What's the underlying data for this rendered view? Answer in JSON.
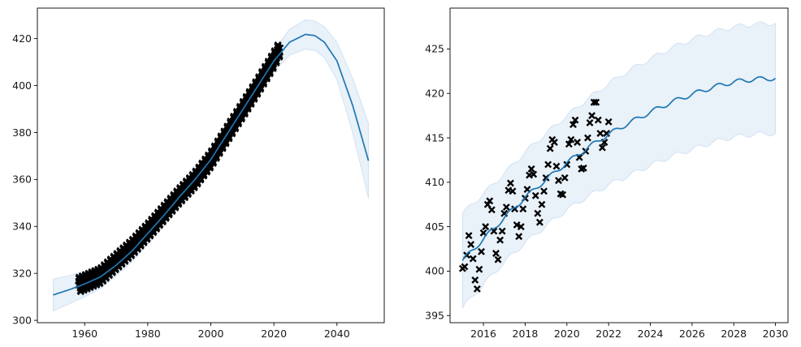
{
  "chart_data": [
    {
      "type": "line",
      "panel": "left",
      "title": "",
      "xlabel": "",
      "ylabel": "",
      "xlim": [
        1945,
        2055
      ],
      "ylim": [
        299,
        433
      ],
      "xticks": [
        1960,
        1980,
        2000,
        2020,
        2040
      ],
      "yticks": [
        300,
        320,
        340,
        360,
        380,
        400,
        420
      ],
      "grid": false,
      "legend": "none",
      "colors": {
        "mean": "#1f77b4",
        "band": "#cfe1f2",
        "markers": "#000000"
      },
      "observations": {
        "marker": "x",
        "x_range": [
          1958,
          2022
        ],
        "seasonal_amplitude": 3.2,
        "trend_points": [
          [
            1958,
            315
          ],
          [
            1965,
            319
          ],
          [
            1970,
            325
          ],
          [
            1975,
            331
          ],
          [
            1980,
            338
          ],
          [
            1985,
            345.5
          ],
          [
            1990,
            353
          ],
          [
            1995,
            360
          ],
          [
            2000,
            368.5
          ],
          [
            2005,
            379
          ],
          [
            2010,
            389.5
          ],
          [
            2015,
            400
          ],
          [
            2020,
            411
          ],
          [
            2022,
            416
          ]
        ]
      },
      "series": [
        {
          "role": "mean",
          "points": [
            [
              1950,
              310.8
            ],
            [
              1955,
              313
            ],
            [
              1960,
              315.5
            ],
            [
              1965,
              318.5
            ],
            [
              1970,
              323.5
            ],
            [
              1975,
              329.5
            ],
            [
              1980,
              337
            ],
            [
              1985,
              344.5
            ],
            [
              1990,
              352.5
            ],
            [
              1995,
              360
            ],
            [
              2000,
              368.5
            ],
            [
              2005,
              379
            ],
            [
              2010,
              389.5
            ],
            [
              2015,
              400
            ],
            [
              2020,
              410.5
            ],
            [
              2025,
              418.5
            ],
            [
              2030,
              421.8
            ],
            [
              2033,
              421.3
            ],
            [
              2036,
              418.5
            ],
            [
              2040,
              410.5
            ],
            [
              2045,
              391.5
            ],
            [
              2050,
              368
            ]
          ]
        },
        {
          "role": "band",
          "upper": [
            [
              1950,
              317.5
            ],
            [
              1955,
              319
            ],
            [
              1960,
              321
            ],
            [
              1965,
              323.5
            ],
            [
              1970,
              328
            ],
            [
              1975,
              334
            ],
            [
              1980,
              341.5
            ],
            [
              1985,
              349
            ],
            [
              1990,
              357
            ],
            [
              1995,
              364.5
            ],
            [
              2000,
              373
            ],
            [
              2005,
              383.5
            ],
            [
              2010,
              394
            ],
            [
              2015,
              404.5
            ],
            [
              2020,
              415
            ],
            [
              2025,
              424
            ],
            [
              2030,
              428
            ],
            [
              2033,
              427.5
            ],
            [
              2036,
              425
            ],
            [
              2040,
              418.5
            ],
            [
              2045,
              403
            ],
            [
              2050,
              384
            ]
          ],
          "lower": [
            [
              1950,
              304
            ],
            [
              1955,
              307
            ],
            [
              1960,
              310
            ],
            [
              1965,
              313.5
            ],
            [
              1970,
              319
            ],
            [
              1975,
              325
            ],
            [
              1980,
              332.5
            ],
            [
              1985,
              340
            ],
            [
              1990,
              348
            ],
            [
              1995,
              355.5
            ],
            [
              2000,
              364
            ],
            [
              2005,
              374.5
            ],
            [
              2010,
              385
            ],
            [
              2015,
              395.5
            ],
            [
              2020,
              406
            ],
            [
              2025,
              413
            ],
            [
              2030,
              415.5
            ],
            [
              2033,
              415
            ],
            [
              2036,
              412
            ],
            [
              2040,
              402.5
            ],
            [
              2045,
              380
            ],
            [
              2050,
              352
            ]
          ]
        }
      ]
    },
    {
      "type": "line",
      "panel": "right",
      "title": "",
      "xlabel": "",
      "ylabel": "",
      "xlim": [
        2014.4,
        2030.6
      ],
      "ylim": [
        394.2,
        429.6
      ],
      "xticks": [
        2016,
        2018,
        2020,
        2022,
        2024,
        2026,
        2028,
        2030
      ],
      "yticks": [
        395,
        400,
        405,
        410,
        415,
        420,
        425
      ],
      "grid": false,
      "legend": "none",
      "colors": {
        "mean": "#1f77b4",
        "band": "#cfe1f2",
        "markers": "#000000"
      },
      "observations": {
        "marker": "x",
        "points": [
          [
            2015.0,
            400.3
          ],
          [
            2015.1,
            400.5
          ],
          [
            2015.2,
            401.8
          ],
          [
            2015.3,
            404.0
          ],
          [
            2015.4,
            403.0
          ],
          [
            2015.5,
            401.4
          ],
          [
            2015.6,
            399.0
          ],
          [
            2015.7,
            398.0
          ],
          [
            2015.8,
            400.2
          ],
          [
            2015.9,
            402.2
          ],
          [
            2016.0,
            404.3
          ],
          [
            2016.1,
            405.0
          ],
          [
            2016.2,
            407.5
          ],
          [
            2016.3,
            407.9
          ],
          [
            2016.4,
            406.9
          ],
          [
            2016.5,
            404.5
          ],
          [
            2016.6,
            402.0
          ],
          [
            2016.7,
            401.3
          ],
          [
            2016.8,
            403.5
          ],
          [
            2016.9,
            404.5
          ],
          [
            2017.0,
            406.5
          ],
          [
            2017.1,
            407.2
          ],
          [
            2017.2,
            409.1
          ],
          [
            2017.3,
            409.9
          ],
          [
            2017.4,
            409.0
          ],
          [
            2017.5,
            407.0
          ],
          [
            2017.6,
            405.2
          ],
          [
            2017.7,
            403.9
          ],
          [
            2017.8,
            405.0
          ],
          [
            2017.9,
            407.0
          ],
          [
            2018.0,
            408.2
          ],
          [
            2018.1,
            409.2
          ],
          [
            2018.2,
            410.8
          ],
          [
            2018.3,
            411.5
          ],
          [
            2018.4,
            410.9
          ],
          [
            2018.5,
            408.5
          ],
          [
            2018.6,
            406.5
          ],
          [
            2018.7,
            405.5
          ],
          [
            2018.8,
            407.5
          ],
          [
            2018.9,
            409.0
          ],
          [
            2019.0,
            410.5
          ],
          [
            2019.1,
            412.0
          ],
          [
            2019.2,
            413.8
          ],
          [
            2019.3,
            414.8
          ],
          [
            2019.4,
            414.5
          ],
          [
            2019.5,
            411.8
          ],
          [
            2019.6,
            410.2
          ],
          [
            2019.7,
            408.7
          ],
          [
            2019.8,
            408.6
          ],
          [
            2019.9,
            410.5
          ],
          [
            2020.0,
            412.0
          ],
          [
            2020.1,
            414.3
          ],
          [
            2020.2,
            414.8
          ],
          [
            2020.3,
            416.5
          ],
          [
            2020.4,
            417.0
          ],
          [
            2020.5,
            414.5
          ],
          [
            2020.6,
            412.8
          ],
          [
            2020.7,
            411.5
          ],
          [
            2020.8,
            411.6
          ],
          [
            2020.9,
            413.5
          ],
          [
            2021.0,
            415.0
          ],
          [
            2021.1,
            416.7
          ],
          [
            2021.2,
            417.5
          ],
          [
            2021.3,
            419.0
          ],
          [
            2021.4,
            419.0
          ],
          [
            2021.5,
            417.0
          ],
          [
            2021.6,
            415.5
          ],
          [
            2021.7,
            413.9
          ],
          [
            2021.8,
            414.5
          ],
          [
            2021.9,
            415.5
          ],
          [
            2022.0,
            416.8
          ]
        ]
      },
      "series": [
        {
          "role": "mean",
          "seasonal_amplitude": 0.25,
          "points": [
            [
              2015.0,
              401.2
            ],
            [
              2016.0,
              403.6
            ],
            [
              2017.0,
              406.0
            ],
            [
              2018.0,
              408.3
            ],
            [
              2019.0,
              410.3
            ],
            [
              2020.0,
              412.2
            ],
            [
              2021.0,
              413.9
            ],
            [
              2022.0,
              415.4
            ],
            [
              2023.0,
              416.7
            ],
            [
              2024.0,
              417.9
            ],
            [
              2025.0,
              419.0
            ],
            [
              2026.0,
              419.9
            ],
            [
              2027.0,
              420.7
            ],
            [
              2028.0,
              421.3
            ],
            [
              2029.0,
              421.6
            ],
            [
              2030.0,
              421.7
            ]
          ]
        },
        {
          "role": "band",
          "seasonal_amplitude": 0.25,
          "upper": [
            [
              2015.0,
              406.5
            ],
            [
              2016.0,
              408.7
            ],
            [
              2017.0,
              411.0
            ],
            [
              2018.0,
              413.4
            ],
            [
              2019.0,
              415.5
            ],
            [
              2020.0,
              417.5
            ],
            [
              2021.0,
              419.4
            ],
            [
              2022.0,
              421.1
            ],
            [
              2023.0,
              422.6
            ],
            [
              2024.0,
              423.9
            ],
            [
              2025.0,
              425.1
            ],
            [
              2026.0,
              426.1
            ],
            [
              2027.0,
              426.9
            ],
            [
              2028.0,
              427.5
            ],
            [
              2029.0,
              427.8
            ],
            [
              2030.0,
              427.9
            ]
          ],
          "lower": [
            [
              2015.0,
              395.9
            ],
            [
              2016.0,
              398.5
            ],
            [
              2017.0,
              401.0
            ],
            [
              2018.0,
              403.2
            ],
            [
              2019.0,
              405.1
            ],
            [
              2020.0,
              406.9
            ],
            [
              2021.0,
              408.4
            ],
            [
              2022.0,
              409.7
            ],
            [
              2023.0,
              410.8
            ],
            [
              2024.0,
              411.9
            ],
            [
              2025.0,
              412.9
            ],
            [
              2026.0,
              413.7
            ],
            [
              2027.0,
              414.5
            ],
            [
              2028.0,
              415.1
            ],
            [
              2029.0,
              415.4
            ],
            [
              2030.0,
              415.5
            ]
          ]
        }
      ]
    }
  ]
}
